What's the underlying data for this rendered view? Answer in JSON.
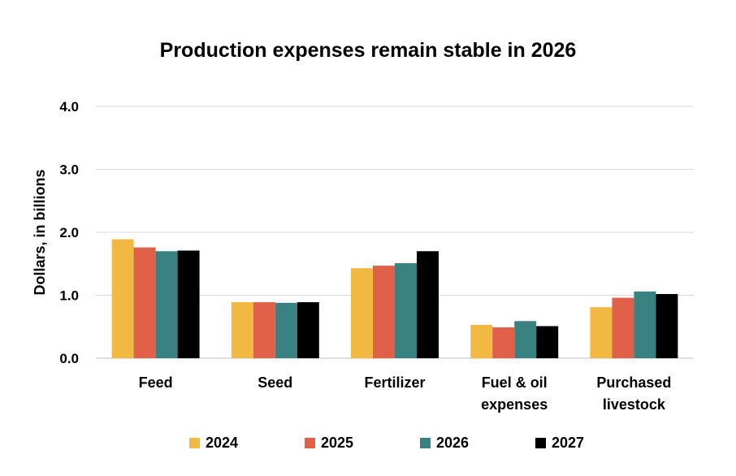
{
  "chart_data": {
    "type": "bar",
    "title": "Production expenses remain stable in 2026",
    "ylabel": "Dollars, in billions",
    "xlabel": "",
    "ylim": [
      0,
      4
    ],
    "yticks": [
      "0.0",
      "1.0",
      "2.0",
      "3.0",
      "4.0"
    ],
    "grid": true,
    "legend_position": "bottom",
    "categories": [
      [
        "Feed"
      ],
      [
        "Seed"
      ],
      [
        "Fertilizer"
      ],
      [
        "Fuel & oil",
        "expenses"
      ],
      [
        "Purchased",
        "livestock"
      ]
    ],
    "series": [
      {
        "name": "2024",
        "color": "#F2B942",
        "values": [
          1.89,
          0.89,
          1.43,
          0.53,
          0.81
        ]
      },
      {
        "name": "2025",
        "color": "#E0604A",
        "values": [
          1.76,
          0.89,
          1.47,
          0.49,
          0.96
        ]
      },
      {
        "name": "2026",
        "color": "#3A8282",
        "values": [
          1.7,
          0.88,
          1.51,
          0.59,
          1.06
        ]
      },
      {
        "name": "2027",
        "color": "#000000",
        "values": [
          1.71,
          0.89,
          1.7,
          0.51,
          1.02
        ]
      }
    ]
  }
}
